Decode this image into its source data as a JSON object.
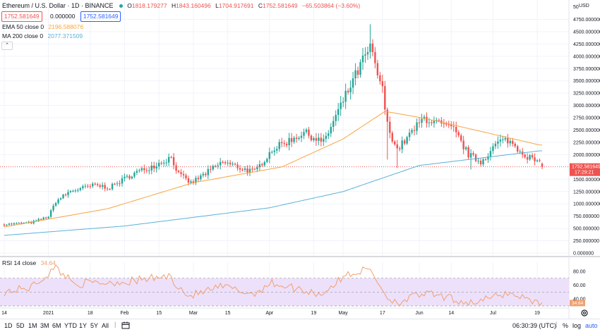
{
  "header": {
    "title": "Ethereum / U.S. Dollar · 1D · BINANCE",
    "ohlc": {
      "o_label": "O",
      "o": "1818.179277",
      "h_label": "H",
      "h": "1843.160496",
      "l_label": "L",
      "l": "1704.917691",
      "c_label": "C",
      "c": "1752.581649",
      "change": "−65.503864 (−3.60%)"
    },
    "sell_price": "1752.581649",
    "spread": "0.000000",
    "buy_price": "1752.581649",
    "ema_label": "EMA 50 close 0",
    "ema_value": "2196.588076",
    "ma_label": "MA 200 close 0",
    "ma_value": "2077.371509",
    "collapse_glyph": "⌃",
    "rsi_label": "RSI 14 close",
    "rsi_value": "34.64"
  },
  "price_axis": {
    "currency": "USD",
    "top_partial": "50",
    "ticks": [
      "4750.000000",
      "4500.000000",
      "4250.000000",
      "4000.000000",
      "3750.000000",
      "3500.000000",
      "3250.000000",
      "3000.000000",
      "2750.000000",
      "2500.000000",
      "2250.000000",
      "2000.000000",
      "1500.000000",
      "1250.000000",
      "1000.000000",
      "750.000000",
      "500.000000",
      "250.000000",
      "0.000000"
    ],
    "last_price": "1752.581649",
    "countdown": "17:29:21"
  },
  "rsi_axis": {
    "ticks": [
      "80.00",
      "60.00",
      "40.00"
    ]
  },
  "time_axis": [
    "14",
    "2021",
    "18",
    "Feb",
    "15",
    "Mar",
    "15",
    "Apr",
    "19",
    "May",
    "17",
    "Jun",
    "14",
    "Jul",
    "19"
  ],
  "bottom_bar": {
    "timeframes": [
      "1D",
      "5D",
      "1M",
      "3M",
      "6M",
      "YTD",
      "1Y",
      "5Y",
      "All"
    ],
    "clock": "06:30:39 (UTC)",
    "percent": "%",
    "log": "log",
    "auto": "auto"
  },
  "colors": {
    "up": "#26a69a",
    "down": "#ef5350",
    "ema": "#f7a541",
    "ma": "#5ab1d8",
    "rsi": "#f0a070",
    "rsi_band": "#ede0fa"
  },
  "chart_data": {
    "type": "candlestick",
    "x_range": [
      "2020-12-14",
      "2021-07-21"
    ],
    "ylim": [
      0,
      5000
    ],
    "last": {
      "open": 1818.18,
      "high": 1843.16,
      "low": 1704.92,
      "close": 1752.58
    },
    "ema50_last": 2196.59,
    "ma200_last": 2077.37,
    "rsi_last": 34.64,
    "close_anchors": [
      [
        "2020-12-14",
        580
      ],
      [
        "2020-12-25",
        620
      ],
      [
        "2021-01-01",
        740
      ],
      [
        "2021-01-04",
        1050
      ],
      [
        "2021-01-10",
        1260
      ],
      [
        "2021-01-20",
        1380
      ],
      [
        "2021-01-26",
        1330
      ],
      [
        "2021-02-04",
        1600
      ],
      [
        "2021-02-14",
        1800
      ],
      [
        "2021-02-20",
        1950
      ],
      [
        "2021-02-23",
        1600
      ],
      [
        "2021-02-28",
        1420
      ],
      [
        "2021-03-13",
        1850
      ],
      [
        "2021-03-22",
        1700
      ],
      [
        "2021-03-26",
        1650
      ],
      [
        "2021-04-02",
        2100
      ],
      [
        "2021-04-15",
        2450
      ],
      [
        "2021-04-23",
        2250
      ],
      [
        "2021-05-03",
        3300
      ],
      [
        "2021-05-10",
        4000
      ],
      [
        "2021-05-12",
        4150
      ],
      [
        "2021-05-17",
        3300
      ],
      [
        "2021-05-19",
        2600
      ],
      [
        "2021-05-23",
        2100
      ],
      [
        "2021-06-03",
        2750
      ],
      [
        "2021-06-10",
        2600
      ],
      [
        "2021-06-15",
        2500
      ],
      [
        "2021-06-21",
        2000
      ],
      [
        "2021-06-26",
        1850
      ],
      [
        "2021-07-03",
        2250
      ],
      [
        "2021-07-07",
        2300
      ],
      [
        "2021-07-14",
        2000
      ],
      [
        "2021-07-20",
        1818
      ]
    ],
    "rsi_anchors": [
      [
        "2020-12-14",
        50
      ],
      [
        "2020-12-25",
        57
      ],
      [
        "2021-01-04",
        85
      ],
      [
        "2021-01-12",
        62
      ],
      [
        "2021-02-02",
        65
      ],
      [
        "2021-02-19",
        73
      ],
      [
        "2021-02-27",
        44
      ],
      [
        "2021-03-13",
        58
      ],
      [
        "2021-03-25",
        47
      ],
      [
        "2021-04-02",
        63
      ],
      [
        "2021-04-22",
        47
      ],
      [
        "2021-05-03",
        76
      ],
      [
        "2021-05-12",
        83
      ],
      [
        "2021-05-19",
        42
      ],
      [
        "2021-05-23",
        35
      ],
      [
        "2021-06-03",
        48
      ],
      [
        "2021-06-21",
        35
      ],
      [
        "2021-06-26",
        37
      ],
      [
        "2021-07-07",
        49
      ],
      [
        "2021-07-20",
        35
      ]
    ],
    "ema50_anchors": [
      [
        "2020-12-14",
        530
      ],
      [
        "2021-01-25",
        900
      ],
      [
        "2021-03-01",
        1430
      ],
      [
        "2021-04-06",
        1750
      ],
      [
        "2021-05-01",
        2320
      ],
      [
        "2021-05-18",
        2880
      ],
      [
        "2021-06-03",
        2740
      ],
      [
        "2021-07-20",
        2196.59
      ]
    ],
    "ma200_anchors": [
      [
        "2020-12-14",
        360
      ],
      [
        "2021-02-01",
        550
      ],
      [
        "2021-04-01",
        920
      ],
      [
        "2021-05-01",
        1250
      ],
      [
        "2021-06-01",
        1780
      ],
      [
        "2021-07-20",
        2077.37
      ]
    ]
  }
}
